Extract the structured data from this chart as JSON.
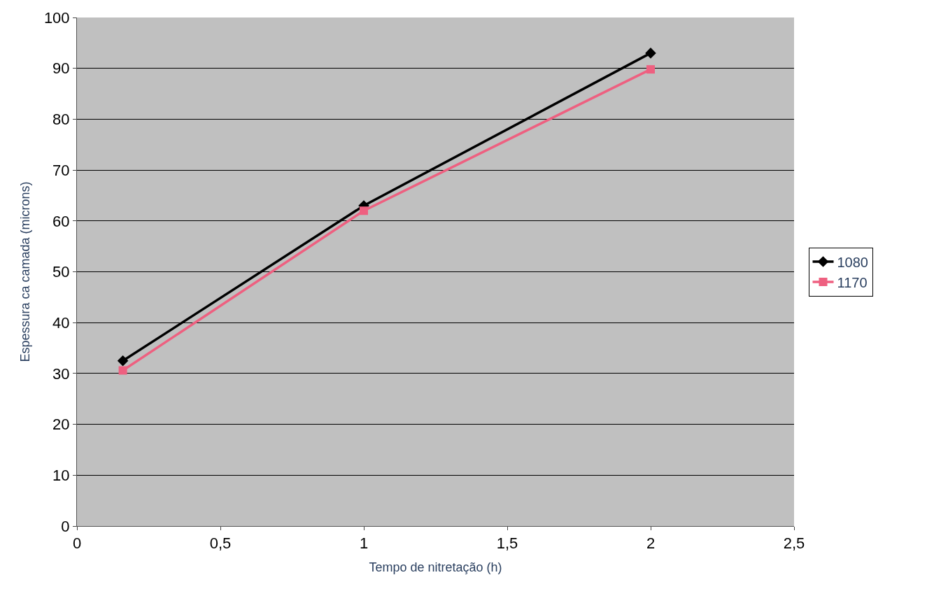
{
  "chart_data": {
    "type": "line",
    "xlabel": "Tempo de nitretação (h)",
    "ylabel": "Espessura ca camada (microns)",
    "xlim": [
      0,
      2.5
    ],
    "xticks": [
      0,
      {
        "value": 0.5,
        "label": "0,5"
      },
      1,
      {
        "value": 1.5,
        "label": "1,5"
      },
      2,
      {
        "value": 2.5,
        "label": "2,5"
      }
    ],
    "ylim": [
      0,
      100
    ],
    "yticks": [
      0,
      10,
      20,
      30,
      40,
      50,
      60,
      70,
      80,
      90,
      100
    ],
    "grid": "y",
    "legend": "right",
    "x": [
      0.16,
      1,
      2
    ],
    "series": [
      {
        "name": "1080",
        "color": "#000000",
        "marker": "diamond",
        "values": [
          32.5,
          63,
          93
        ]
      },
      {
        "name": "1170",
        "color": "#ee6080",
        "marker": "square",
        "values": [
          30.6,
          62,
          89.8
        ]
      }
    ]
  }
}
